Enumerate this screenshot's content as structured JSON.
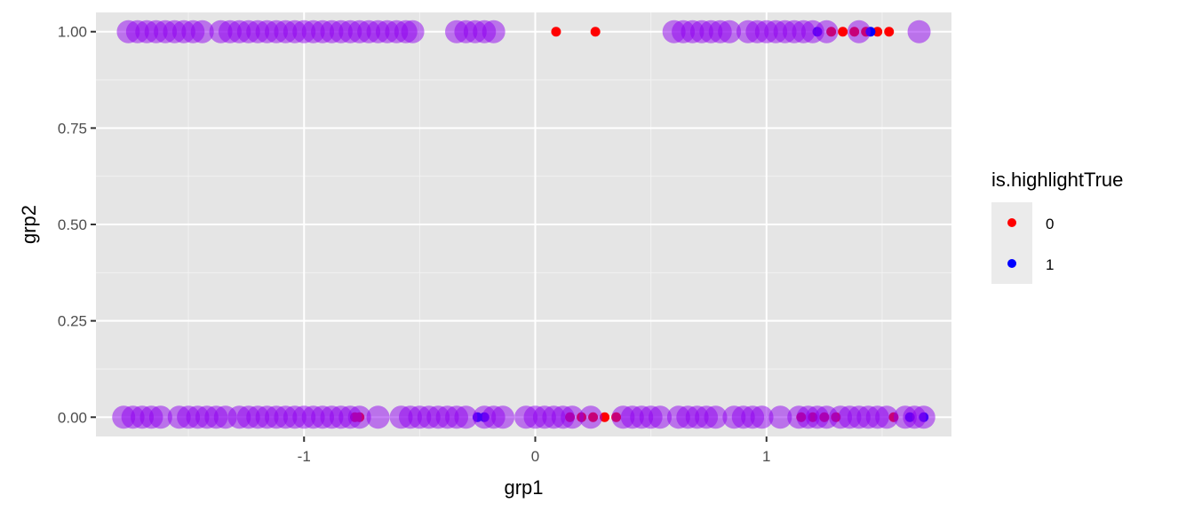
{
  "chart_data": {
    "type": "scatter",
    "title": "",
    "xlabel": "grp1",
    "ylabel": "grp2",
    "xlim": [
      -1.9,
      1.8
    ],
    "ylim": [
      -0.05,
      1.05
    ],
    "x_ticks": [
      -1,
      0,
      1
    ],
    "x_tick_labels": [
      "-1",
      "0",
      "1"
    ],
    "y_ticks": [
      0.0,
      0.25,
      0.5,
      0.75,
      1.0
    ],
    "y_tick_labels": [
      "0.00",
      "0.25",
      "0.50",
      "0.75",
      "1.00"
    ],
    "grid": true,
    "background": "#e5e5e5",
    "legend": {
      "title": "is.highlightTrue",
      "position": "right",
      "entries": [
        {
          "label": "0",
          "color": "#ff0000"
        },
        {
          "label": "1",
          "color": "#0000ff"
        }
      ]
    },
    "overlay_color": "#8f00f0",
    "series": [
      {
        "name": "0",
        "color": "#ff0000",
        "points": [
          [
            0.09,
            1
          ],
          [
            0.26,
            1
          ],
          [
            1.28,
            1
          ],
          [
            1.33,
            1
          ],
          [
            1.38,
            1
          ],
          [
            1.43,
            1
          ],
          [
            1.48,
            1
          ],
          [
            1.53,
            1
          ],
          [
            -0.78,
            0
          ],
          [
            -0.76,
            0
          ],
          [
            0.15,
            0
          ],
          [
            0.2,
            0
          ],
          [
            0.25,
            0
          ],
          [
            0.3,
            0
          ],
          [
            0.35,
            0
          ],
          [
            1.15,
            0
          ],
          [
            1.2,
            0
          ],
          [
            1.25,
            0
          ],
          [
            1.3,
            0
          ],
          [
            1.55,
            0
          ]
        ]
      },
      {
        "name": "1",
        "color": "#0000ff",
        "points": [
          [
            1.22,
            1
          ],
          [
            1.45,
            1
          ],
          [
            -0.25,
            0
          ],
          [
            -0.22,
            0
          ],
          [
            1.62,
            0
          ],
          [
            1.68,
            0
          ]
        ]
      }
    ],
    "highlight_points": [
      [
        -1.76,
        1
      ],
      [
        -1.72,
        1
      ],
      [
        -1.68,
        1
      ],
      [
        -1.64,
        1
      ],
      [
        -1.6,
        1
      ],
      [
        -1.56,
        1
      ],
      [
        -1.52,
        1
      ],
      [
        -1.48,
        1
      ],
      [
        -1.44,
        1
      ],
      [
        -1.36,
        1
      ],
      [
        -1.32,
        1
      ],
      [
        -1.28,
        1
      ],
      [
        -1.24,
        1
      ],
      [
        -1.2,
        1
      ],
      [
        -1.16,
        1
      ],
      [
        -1.12,
        1
      ],
      [
        -1.08,
        1
      ],
      [
        -1.04,
        1
      ],
      [
        -1.0,
        1
      ],
      [
        -0.96,
        1
      ],
      [
        -0.92,
        1
      ],
      [
        -0.88,
        1
      ],
      [
        -0.84,
        1
      ],
      [
        -0.8,
        1
      ],
      [
        -0.76,
        1
      ],
      [
        -0.72,
        1
      ],
      [
        -0.68,
        1
      ],
      [
        -0.64,
        1
      ],
      [
        -0.6,
        1
      ],
      [
        -0.56,
        1
      ],
      [
        -0.53,
        1
      ],
      [
        -0.34,
        1
      ],
      [
        -0.3,
        1
      ],
      [
        -0.26,
        1
      ],
      [
        -0.22,
        1
      ],
      [
        -0.18,
        1
      ],
      [
        0.6,
        1
      ],
      [
        0.64,
        1
      ],
      [
        0.68,
        1
      ],
      [
        0.72,
        1
      ],
      [
        0.76,
        1
      ],
      [
        0.8,
        1
      ],
      [
        0.84,
        1
      ],
      [
        0.92,
        1
      ],
      [
        0.96,
        1
      ],
      [
        1.0,
        1
      ],
      [
        1.04,
        1
      ],
      [
        1.08,
        1
      ],
      [
        1.12,
        1
      ],
      [
        1.16,
        1
      ],
      [
        1.2,
        1
      ],
      [
        1.26,
        1
      ],
      [
        1.4,
        1
      ],
      [
        1.66,
        1
      ],
      [
        -1.78,
        0
      ],
      [
        -1.74,
        0
      ],
      [
        -1.7,
        0
      ],
      [
        -1.66,
        0
      ],
      [
        -1.62,
        0
      ],
      [
        -1.54,
        0
      ],
      [
        -1.5,
        0
      ],
      [
        -1.46,
        0
      ],
      [
        -1.42,
        0
      ],
      [
        -1.38,
        0
      ],
      [
        -1.34,
        0
      ],
      [
        -1.28,
        0
      ],
      [
        -1.24,
        0
      ],
      [
        -1.2,
        0
      ],
      [
        -1.16,
        0
      ],
      [
        -1.12,
        0
      ],
      [
        -1.08,
        0
      ],
      [
        -1.04,
        0
      ],
      [
        -1.0,
        0
      ],
      [
        -0.96,
        0
      ],
      [
        -0.92,
        0
      ],
      [
        -0.88,
        0
      ],
      [
        -0.84,
        0
      ],
      [
        -0.8,
        0
      ],
      [
        -0.76,
        0
      ],
      [
        -0.68,
        0
      ],
      [
        -0.58,
        0
      ],
      [
        -0.54,
        0
      ],
      [
        -0.5,
        0
      ],
      [
        -0.46,
        0
      ],
      [
        -0.42,
        0
      ],
      [
        -0.38,
        0
      ],
      [
        -0.34,
        0
      ],
      [
        -0.3,
        0
      ],
      [
        -0.22,
        0
      ],
      [
        -0.18,
        0
      ],
      [
        -0.14,
        0
      ],
      [
        -0.04,
        0
      ],
      [
        0.0,
        0
      ],
      [
        0.04,
        0
      ],
      [
        0.08,
        0
      ],
      [
        0.12,
        0
      ],
      [
        0.16,
        0
      ],
      [
        0.24,
        0
      ],
      [
        0.38,
        0
      ],
      [
        0.42,
        0
      ],
      [
        0.46,
        0
      ],
      [
        0.5,
        0
      ],
      [
        0.54,
        0
      ],
      [
        0.62,
        0
      ],
      [
        0.66,
        0
      ],
      [
        0.7,
        0
      ],
      [
        0.74,
        0
      ],
      [
        0.78,
        0
      ],
      [
        0.86,
        0
      ],
      [
        0.9,
        0
      ],
      [
        0.94,
        0
      ],
      [
        0.98,
        0
      ],
      [
        1.06,
        0
      ],
      [
        1.14,
        0
      ],
      [
        1.18,
        0
      ],
      [
        1.22,
        0
      ],
      [
        1.26,
        0
      ],
      [
        1.32,
        0
      ],
      [
        1.36,
        0
      ],
      [
        1.4,
        0
      ],
      [
        1.44,
        0
      ],
      [
        1.48,
        0
      ],
      [
        1.52,
        0
      ],
      [
        1.6,
        0
      ],
      [
        1.64,
        0
      ],
      [
        1.68,
        0
      ]
    ]
  }
}
